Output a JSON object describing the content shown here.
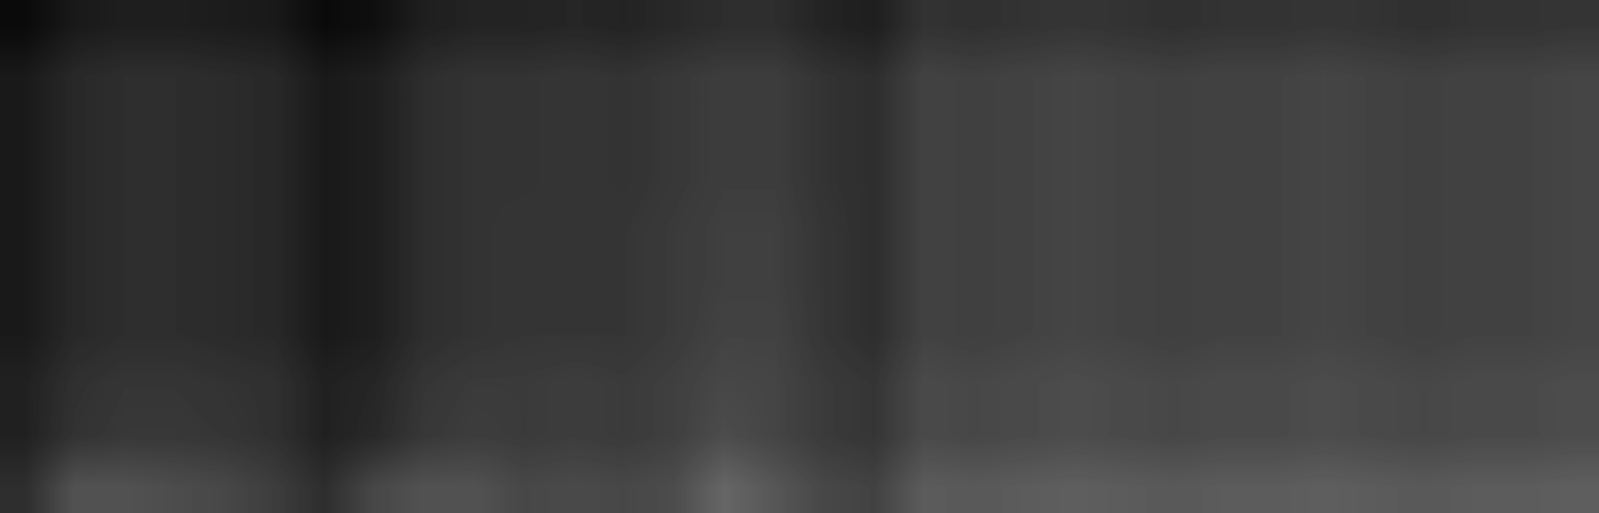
{
  "chart_data": {
    "type": "heatmap",
    "tick_labels": false,
    "color": "gray",
    "zlim": [
      0,
      100
    ],
    "cells": [
      [
        4,
        10,
        12,
        12,
        11,
        10,
        4,
        6,
        12,
        14,
        14,
        15,
        14,
        16,
        18,
        18,
        14,
        12,
        20,
        19,
        20,
        21,
        20,
        19,
        20,
        20,
        21,
        20,
        19,
        20,
        20,
        21
      ],
      [
        10,
        16,
        18,
        18,
        17,
        16,
        10,
        12,
        18,
        20,
        20,
        21,
        20,
        22,
        24,
        24,
        20,
        18,
        26,
        25,
        26,
        27,
        26,
        25,
        26,
        26,
        27,
        26,
        25,
        26,
        26,
        27
      ],
      [
        10,
        16,
        18,
        18,
        17,
        16,
        10,
        12,
        18,
        20,
        20,
        21,
        20,
        22,
        24,
        24,
        20,
        18,
        26,
        25,
        26,
        27,
        26,
        25,
        26,
        26,
        27,
        26,
        25,
        26,
        26,
        27
      ],
      [
        10,
        16,
        18,
        18,
        17,
        16,
        10,
        12,
        18,
        20,
        20,
        21,
        20,
        22,
        24,
        24,
        20,
        18,
        26,
        25,
        26,
        27,
        26,
        25,
        26,
        26,
        27,
        26,
        25,
        26,
        26,
        27
      ],
      [
        10,
        16,
        18,
        18,
        17,
        16,
        10,
        12,
        18,
        20,
        21,
        21,
        21,
        23,
        25,
        25,
        21,
        18,
        26,
        25,
        26,
        27,
        26,
        25,
        26,
        26,
        27,
        26,
        25,
        26,
        26,
        27
      ],
      [
        10,
        16,
        18,
        18,
        17,
        16,
        10,
        12,
        18,
        20,
        21,
        21,
        21,
        23,
        25,
        25,
        21,
        18,
        26,
        25,
        26,
        27,
        26,
        25,
        26,
        26,
        27,
        26,
        25,
        26,
        26,
        27
      ],
      [
        10,
        16,
        18,
        18,
        17,
        16,
        10,
        12,
        18,
        20,
        21,
        21,
        21,
        23,
        26,
        26,
        21,
        18,
        26,
        25,
        26,
        27,
        26,
        25,
        26,
        26,
        27,
        26,
        25,
        26,
        26,
        27
      ],
      [
        13,
        19,
        21,
        21,
        20,
        19,
        13,
        15,
        21,
        23,
        23,
        24,
        23,
        25,
        28,
        27,
        23,
        21,
        29,
        28,
        29,
        30,
        29,
        28,
        29,
        29,
        30,
        29,
        28,
        29,
        29,
        30
      ],
      [
        13,
        20,
        22,
        22,
        21,
        19,
        13,
        16,
        22,
        24,
        23,
        24,
        23,
        25,
        30,
        27,
        23,
        21,
        29,
        28,
        29,
        30,
        29,
        28,
        29,
        29,
        30,
        29,
        28,
        29,
        29,
        30
      ],
      [
        18,
        32,
        32,
        30,
        28,
        24,
        18,
        28,
        32,
        32,
        28,
        29,
        28,
        30,
        40,
        34,
        28,
        26,
        36,
        35,
        36,
        37,
        36,
        35,
        36,
        36,
        37,
        36,
        35,
        36,
        36,
        37
      ]
    ]
  }
}
